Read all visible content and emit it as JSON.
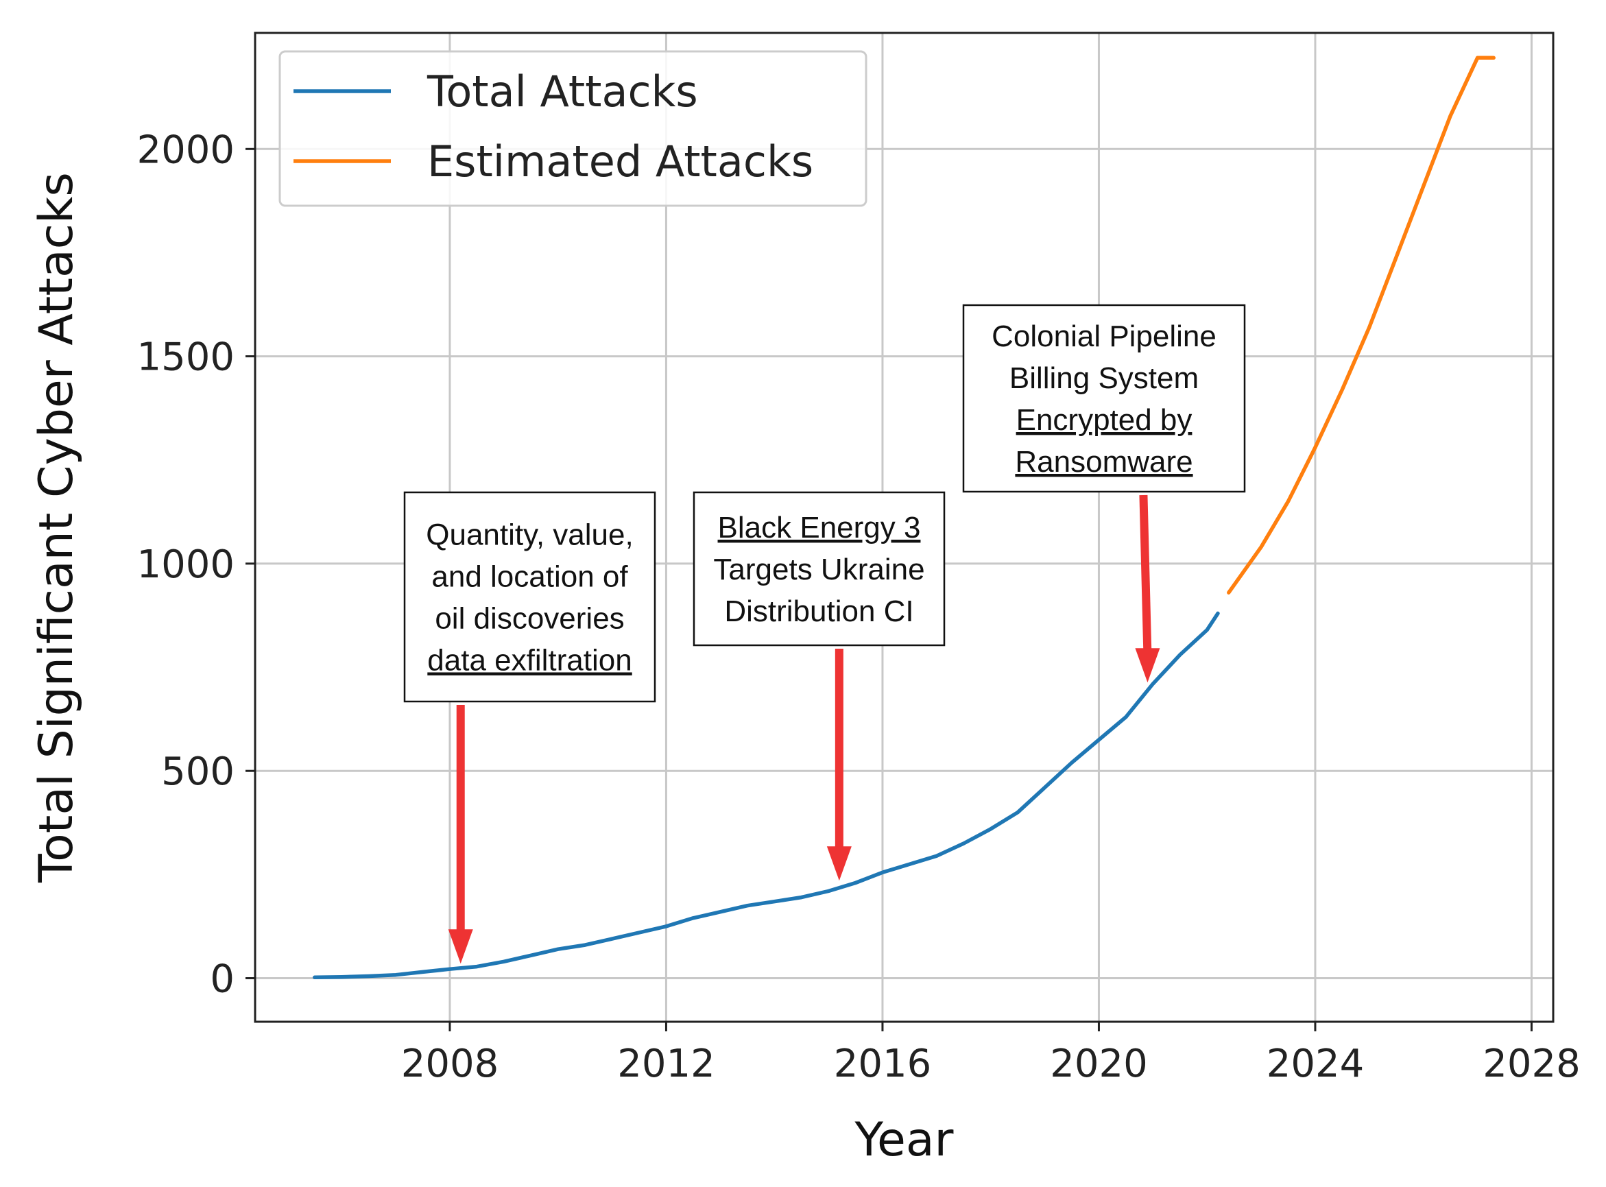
{
  "chart_data": {
    "type": "line",
    "xlabel": "Year",
    "ylabel": "Total Significant Cyber Attacks",
    "xlim": [
      2004.4,
      2028.4
    ],
    "ylim": [
      -105,
      2280
    ],
    "xticks": [
      2008,
      2012,
      2016,
      2020,
      2024,
      2028
    ],
    "yticks": [
      0,
      500,
      1000,
      1500,
      2000
    ],
    "grid": true,
    "legend_position": "top-left",
    "series": [
      {
        "name": "Total Attacks",
        "color": "#1f77b4",
        "x": [
          2005.5,
          2006,
          2006.5,
          2007,
          2007.5,
          2008,
          2008.5,
          2009,
          2009.5,
          2010,
          2010.5,
          2011,
          2011.5,
          2012,
          2012.5,
          2013,
          2013.5,
          2014,
          2014.5,
          2015,
          2015.5,
          2016,
          2016.5,
          2017,
          2017.5,
          2018,
          2018.5,
          2019,
          2019.5,
          2020,
          2020.5,
          2021,
          2021.5,
          2022,
          2022.2
        ],
        "values": [
          2,
          3,
          5,
          8,
          15,
          22,
          28,
          40,
          55,
          70,
          80,
          95,
          110,
          125,
          145,
          160,
          175,
          185,
          195,
          210,
          230,
          255,
          275,
          295,
          325,
          360,
          400,
          460,
          520,
          575,
          630,
          710,
          780,
          840,
          880
        ]
      },
      {
        "name": "Estimated Attacks",
        "color": "#ff7f0e",
        "x": [
          2022.4,
          2023,
          2023.5,
          2024,
          2024.5,
          2025,
          2025.5,
          2026,
          2026.5,
          2027,
          2027.3
        ],
        "values": [
          930,
          1040,
          1150,
          1280,
          1420,
          1570,
          1740,
          1910,
          2080,
          2220,
          2220
        ]
      }
    ],
    "annotations": [
      {
        "lines": [
          {
            "text": "Quantity, value,",
            "underline": false
          },
          {
            "text": "and location of",
            "underline": false
          },
          {
            "text": "oil discoveries",
            "underline": false
          },
          {
            "text": "data exfiltration",
            "underline": true
          }
        ],
        "target_x": 2008.2,
        "target_y": 22
      },
      {
        "lines": [
          {
            "text": "Black Energy 3",
            "underline": true
          },
          {
            "text": "Targets Ukraine",
            "underline": false
          },
          {
            "text": "Distribution CI",
            "underline": false
          }
        ],
        "target_x": 2015.2,
        "target_y": 222
      },
      {
        "lines": [
          {
            "text": "Colonial Pipeline",
            "underline": false
          },
          {
            "text": "Billing System",
            "underline": false
          },
          {
            "text": "Encrypted by",
            "underline": true
          },
          {
            "text": "Ransomware",
            "underline": true
          }
        ],
        "target_x": 2020.9,
        "target_y": 700
      }
    ],
    "arrow_color": "#ee3333"
  }
}
